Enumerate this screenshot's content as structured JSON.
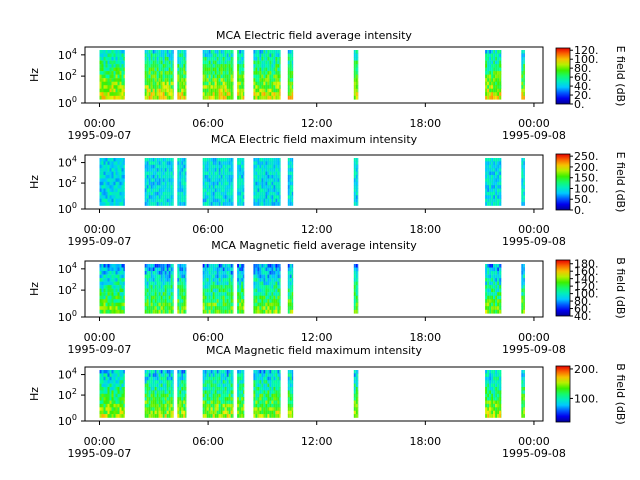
{
  "panel_titles": [
    "MCA  Electric field average intensity",
    "MCA  Electric field maximum intensity",
    "MCA  Magnetic field average intensity",
    "MCA  Magnetic field maximum intensity"
  ],
  "chart_data": [
    {
      "type": "heatmap",
      "title": "MCA  Electric field average intensity",
      "ylabel": "Hz",
      "y_scale": "log",
      "y_ticks": [
        "10^0",
        "10^2",
        "10^4"
      ],
      "x_ticks": [
        {
          "time": "00:00",
          "date": "1995-09-07"
        },
        {
          "time": "06:00",
          "date": ""
        },
        {
          "time": "12:00",
          "date": ""
        },
        {
          "time": "18:00",
          "date": ""
        },
        {
          "time": "00:00",
          "date": "1995-09-08"
        }
      ],
      "x_range_hours": [
        -0.8,
        24.5
      ],
      "colorbar_label": "E field (dB)",
      "colorbar_ticks": [
        "0.",
        "20.",
        "40.",
        "60.",
        "80.",
        "100.",
        "120."
      ],
      "colorbar_range": [
        0,
        125
      ],
      "data_segments_hours": [
        [
          0.0,
          1.4
        ],
        [
          2.5,
          4.1
        ],
        [
          4.3,
          4.8
        ],
        [
          5.7,
          7.4
        ],
        [
          7.6,
          8.0
        ],
        [
          8.5,
          10.0
        ],
        [
          10.4,
          10.7
        ],
        [
          14.05,
          14.3
        ],
        [
          21.3,
          22.2
        ],
        [
          23.3,
          23.5
        ]
      ],
      "mean_level": 0.55,
      "colormap": "rainbow"
    },
    {
      "type": "heatmap",
      "title": "MCA  Electric field maximum intensity",
      "ylabel": "Hz",
      "y_scale": "log",
      "y_ticks": [
        "10^0",
        "10^2",
        "10^4"
      ],
      "x_ticks": [
        {
          "time": "00:00",
          "date": "1995-09-07"
        },
        {
          "time": "06:00",
          "date": ""
        },
        {
          "time": "12:00",
          "date": ""
        },
        {
          "time": "18:00",
          "date": ""
        },
        {
          "time": "00:00",
          "date": "1995-09-08"
        }
      ],
      "x_range_hours": [
        -0.8,
        24.5
      ],
      "colorbar_label": "E field (dB)",
      "colorbar_ticks": [
        "0.",
        "50.",
        "100.",
        "150.",
        "200.",
        "250."
      ],
      "colorbar_range": [
        0,
        260
      ],
      "data_segments_hours": [
        [
          0.0,
          1.4
        ],
        [
          2.5,
          4.1
        ],
        [
          4.3,
          4.8
        ],
        [
          5.7,
          7.4
        ],
        [
          7.6,
          8.0
        ],
        [
          8.5,
          10.0
        ],
        [
          10.4,
          10.7
        ],
        [
          14.05,
          14.3
        ],
        [
          21.3,
          22.2
        ],
        [
          23.3,
          23.5
        ]
      ],
      "mean_level": 0.4,
      "colormap": "rainbow"
    },
    {
      "type": "heatmap",
      "title": "MCA  Magnetic field average intensity",
      "ylabel": "Hz",
      "y_scale": "log",
      "y_ticks": [
        "10^0",
        "10^2",
        "10^4"
      ],
      "x_ticks": [
        {
          "time": "00:00",
          "date": "1995-09-07"
        },
        {
          "time": "06:00",
          "date": ""
        },
        {
          "time": "12:00",
          "date": ""
        },
        {
          "time": "18:00",
          "date": ""
        },
        {
          "time": "00:00",
          "date": "1995-09-08"
        }
      ],
      "x_range_hours": [
        -0.8,
        24.5
      ],
      "colorbar_label": "B field (dB)",
      "colorbar_ticks": [
        "40.",
        "60.",
        "80.",
        "100.",
        "120.",
        "140.",
        "160.",
        "180."
      ],
      "colorbar_range": [
        40,
        190
      ],
      "data_segments_hours": [
        [
          0.0,
          1.4
        ],
        [
          2.5,
          4.1
        ],
        [
          4.3,
          4.8
        ],
        [
          5.7,
          7.4
        ],
        [
          7.6,
          8.0
        ],
        [
          8.5,
          10.0
        ],
        [
          10.4,
          10.7
        ],
        [
          14.05,
          14.3
        ],
        [
          21.3,
          22.2
        ],
        [
          23.3,
          23.5
        ]
      ],
      "mean_level": 0.45,
      "colormap": "rainbow"
    },
    {
      "type": "heatmap",
      "title": "MCA  Magnetic field maximum intensity",
      "ylabel": "Hz",
      "y_scale": "log",
      "y_ticks": [
        "10^0",
        "10^2",
        "10^4"
      ],
      "x_ticks": [
        {
          "time": "00:00",
          "date": "1995-09-07"
        },
        {
          "time": "06:00",
          "date": ""
        },
        {
          "time": "12:00",
          "date": ""
        },
        {
          "time": "18:00",
          "date": ""
        },
        {
          "time": "00:00",
          "date": "1995-09-08"
        }
      ],
      "x_range_hours": [
        -0.8,
        24.5
      ],
      "colorbar_label": "B field (dB)",
      "colorbar_ticks": [
        "100.",
        "200."
      ],
      "colorbar_range": [
        20,
        210
      ],
      "data_segments_hours": [
        [
          0.0,
          1.4
        ],
        [
          2.5,
          4.1
        ],
        [
          4.3,
          4.8
        ],
        [
          5.7,
          7.4
        ],
        [
          7.6,
          8.0
        ],
        [
          8.5,
          10.0
        ],
        [
          10.4,
          10.7
        ],
        [
          14.05,
          14.3
        ],
        [
          21.3,
          22.2
        ],
        [
          23.3,
          23.5
        ]
      ],
      "mean_level": 0.5,
      "colormap": "rainbow"
    }
  ]
}
